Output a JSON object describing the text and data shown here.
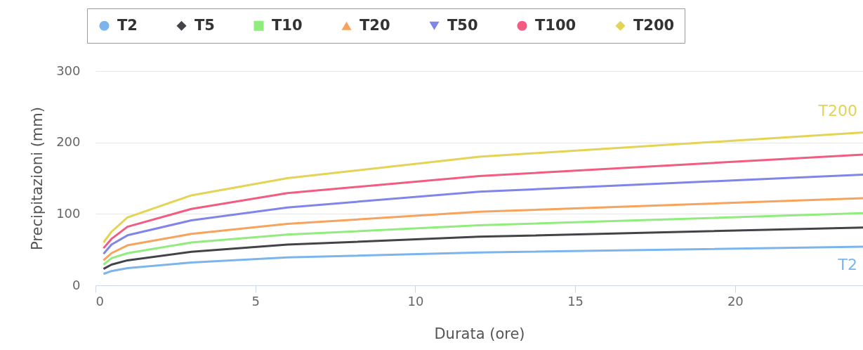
{
  "chart_data": {
    "type": "line",
    "xlabel": "Durata (ore)",
    "ylabel": "Precipitazioni (mm)",
    "x": [
      0.25,
      0.5,
      1,
      3,
      6,
      12,
      24
    ],
    "series": [
      {
        "name": "T2",
        "color": "#7cb5ec",
        "values": [
          16,
          20,
          24,
          32,
          39,
          46,
          54
        ]
      },
      {
        "name": "T5",
        "color": "#434348",
        "values": [
          23,
          29,
          35,
          47,
          57,
          68,
          81
        ]
      },
      {
        "name": "T10",
        "color": "#90ed7d",
        "values": [
          29,
          38,
          45,
          60,
          71,
          84,
          101
        ]
      },
      {
        "name": "T20",
        "color": "#f7a35c",
        "values": [
          35,
          45,
          56,
          72,
          86,
          103,
          122
        ]
      },
      {
        "name": "T50",
        "color": "#8085e9",
        "values": [
          44,
          57,
          70,
          91,
          109,
          131,
          155
        ]
      },
      {
        "name": "T100",
        "color": "#f15c80",
        "values": [
          52,
          65,
          82,
          107,
          129,
          153,
          183
        ]
      },
      {
        "name": "T200",
        "color": "#e4d354",
        "values": [
          60,
          75,
          95,
          126,
          150,
          180,
          214
        ]
      }
    ],
    "annotations": [
      "T200",
      "T2"
    ],
    "xlim": [
      0,
      24
    ],
    "xticks": [
      0,
      5,
      10,
      15,
      20
    ],
    "ylim": [
      0,
      300
    ],
    "yticks": [
      0,
      100,
      200,
      300
    ],
    "grid": "y",
    "legend": "top",
    "line_style": "solid"
  }
}
